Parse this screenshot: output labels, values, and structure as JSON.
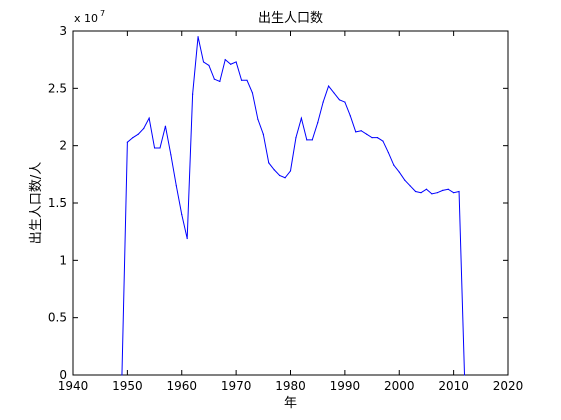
{
  "chart_data": {
    "type": "line",
    "title": "出生人口数",
    "xlabel": "年",
    "ylabel": "出生人口数/人",
    "y_exponent_base": "x 10",
    "y_exponent_power": "7",
    "xlim": [
      1940,
      2020
    ],
    "ylim": [
      0,
      3
    ],
    "y_unit_multiplier": 10000000,
    "x_ticks": [
      1940,
      1950,
      1960,
      1970,
      1980,
      1990,
      2000,
      2010,
      2020
    ],
    "y_ticks": [
      0,
      0.5,
      1,
      1.5,
      2,
      2.5,
      3
    ],
    "grid": false,
    "legend": "none",
    "line_color": "#0000ff",
    "series": [
      {
        "x": [
          1949,
          1950,
          1951,
          1952,
          1953,
          1954,
          1955,
          1956,
          1957,
          1958,
          1959,
          1960,
          1961,
          1962,
          1963,
          1964,
          1965,
          1966,
          1967,
          1968,
          1969,
          1970,
          1971,
          1972,
          1973,
          1974,
          1975,
          1976,
          1977,
          1978,
          1979,
          1980,
          1981,
          1982,
          1983,
          1984,
          1985,
          1986,
          1987,
          1988,
          1989,
          1990,
          1991,
          1992,
          1993,
          1994,
          1995,
          1996,
          1997,
          1998,
          1999,
          2000,
          2001,
          2002,
          2003,
          2004,
          2005,
          2006,
          2007,
          2008,
          2009,
          2010,
          2011,
          2012
        ],
        "values": [
          0,
          2.03,
          2.07,
          2.1,
          2.15,
          2.24,
          1.98,
          1.98,
          2.17,
          1.92,
          1.65,
          1.4,
          1.19,
          2.45,
          2.95,
          2.73,
          2.7,
          2.58,
          2.56,
          2.75,
          2.71,
          2.73,
          2.57,
          2.57,
          2.46,
          2.23,
          2.1,
          1.85,
          1.79,
          1.74,
          1.72,
          1.78,
          2.07,
          2.24,
          2.05,
          2.05,
          2.2,
          2.38,
          2.52,
          2.46,
          2.4,
          2.38,
          2.26,
          2.12,
          2.13,
          2.1,
          2.07,
          2.07,
          2.04,
          1.94,
          1.83,
          1.77,
          1.7,
          1.65,
          1.6,
          1.59,
          1.62,
          1.58,
          1.59,
          1.61,
          1.62,
          1.59,
          1.6,
          0
        ]
      }
    ]
  }
}
